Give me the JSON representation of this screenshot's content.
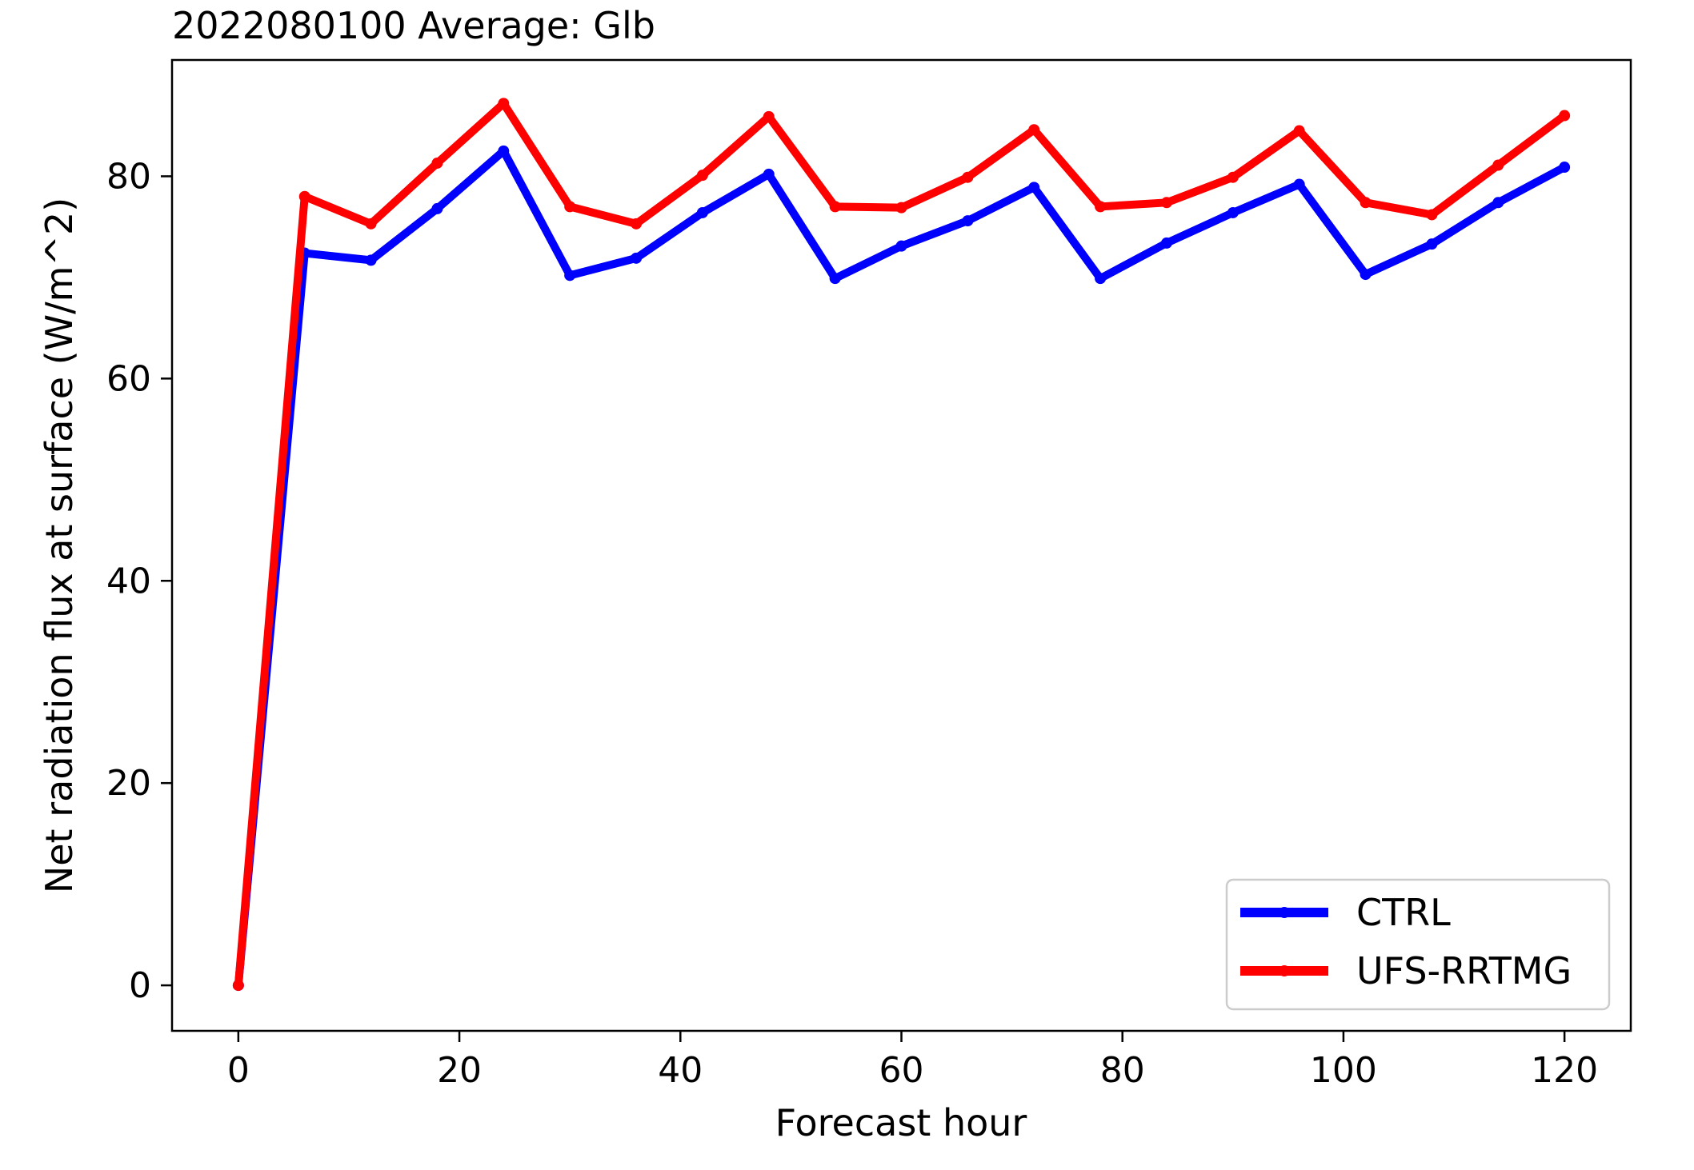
{
  "chart_data": {
    "type": "line",
    "title": "2022080100 Average: Glb",
    "xlabel": "Forecast hour",
    "ylabel": "Net radiation flux at surface (W/m^2)",
    "xlim": [
      -6,
      126
    ],
    "ylim": [
      -4.5,
      91.5
    ],
    "xticks": [
      0,
      20,
      40,
      60,
      80,
      100,
      120
    ],
    "yticks": [
      0,
      20,
      40,
      60,
      80
    ],
    "grid": false,
    "legend_position": "lower-right",
    "x": [
      0,
      6,
      12,
      18,
      24,
      30,
      36,
      42,
      48,
      54,
      60,
      66,
      72,
      78,
      84,
      90,
      96,
      102,
      108,
      114,
      120
    ],
    "series": [
      {
        "name": "CTRL",
        "color": "#0000ff",
        "values": [
          0,
          72.4,
          71.7,
          76.8,
          82.5,
          70.2,
          71.9,
          76.4,
          80.2,
          69.9,
          73.1,
          75.6,
          78.9,
          69.9,
          73.4,
          76.4,
          79.2,
          70.3,
          73.3,
          77.4,
          80.9
        ]
      },
      {
        "name": "UFS-RRTMG",
        "color": "#ff0000",
        "values": [
          0,
          78.0,
          75.3,
          81.3,
          87.2,
          77.0,
          75.3,
          80.1,
          85.9,
          77.0,
          76.9,
          79.9,
          84.6,
          77.0,
          77.4,
          79.9,
          84.5,
          77.4,
          76.2,
          81.1,
          86.0
        ]
      }
    ]
  }
}
